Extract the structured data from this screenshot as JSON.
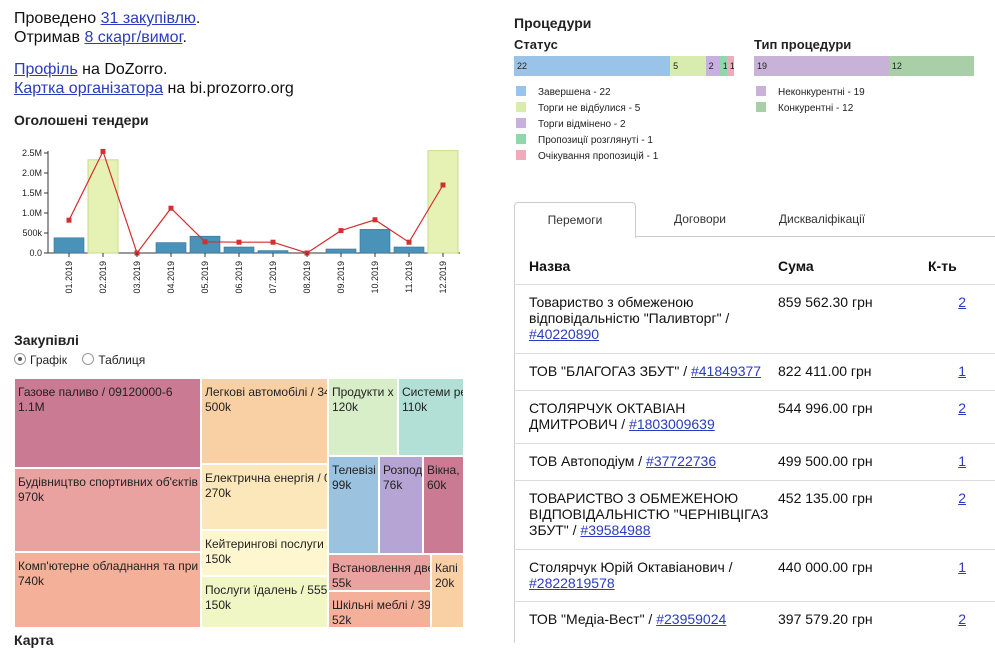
{
  "summary": {
    "line1_pre": "Проведено ",
    "line1_link": "31 закупівлю",
    "line1_post": ".",
    "line2_pre": "Отримав ",
    "line2_link": "8 скарг/вимог",
    "line2_post": ".",
    "profile_link": "Профіль",
    "profile_post": " на DoZorro.",
    "card_link": "Картка організатора",
    "card_post": " на bi.prozorro.org"
  },
  "tenders_title": "Оголошені тендери",
  "chart_data": {
    "type": "bar",
    "categories": [
      "01.2019",
      "02.2019",
      "03.2019",
      "04.2019",
      "05.2019",
      "06.2019",
      "07.2019",
      "08.2019",
      "09.2019",
      "10.2019",
      "11.2019",
      "12.2019"
    ],
    "yticks": [
      "0.0",
      "500k",
      "1.0M",
      "1.5M",
      "2.0M",
      "2.5M"
    ],
    "ylim": [
      0,
      2500000
    ],
    "series": [
      {
        "values": [
          380000,
          2330000,
          0,
          260000,
          420000,
          150000,
          60000,
          0,
          100000,
          590000,
          150000,
          2560000
        ]
      },
      {
        "values": [
          820000,
          2540000,
          0,
          1120000,
          280000,
          270000,
          270000,
          0,
          560000,
          830000,
          270000,
          1700000
        ]
      }
    ],
    "highlight": [
      false,
      true,
      false,
      false,
      false,
      false,
      false,
      false,
      false,
      false,
      false,
      true
    ],
    "colors": {
      "bar": "#4a92b8",
      "highlight": "#e6f2b3",
      "line": "#d32f2f"
    }
  },
  "purchases": {
    "title": "Закупівлі",
    "radio_graph": "Графік",
    "radio_table": "Таблиця",
    "treemap": [
      {
        "label": "Газове паливо / 09120000-6",
        "value": "1.1M",
        "color": "#cb7a94"
      },
      {
        "label": "Будівництво спортивних об'єктів",
        "value": "970k",
        "color": "#e9a2a0"
      },
      {
        "label": "Комп'ютерне обладнання та при",
        "value": "740k",
        "color": "#f5b09a"
      },
      {
        "label": "Легкові автомобілі / 34",
        "value": "500k",
        "color": "#f8d0a3"
      },
      {
        "label": "Електрична енергія / 0",
        "value": "270k",
        "color": "#fbe7ba"
      },
      {
        "label": "Кейтерингові послуги /",
        "value": "150k",
        "color": "#fdf6cf"
      },
      {
        "label": "Послуги їдалень / 555",
        "value": "150k",
        "color": "#f1f6c5"
      },
      {
        "label": "Продукти х",
        "value": "120k",
        "color": "#d8eec9"
      },
      {
        "label": "Системи ре",
        "value": "110k",
        "color": "#b3e0d6"
      },
      {
        "label": "Телевізі",
        "value": "99k",
        "color": "#9bc2de"
      },
      {
        "label": "Розпод",
        "value": "76k",
        "color": "#b6a5d4"
      },
      {
        "label": "Вікна,",
        "value": "60k",
        "color": "#cb7a94"
      },
      {
        "label": "Встановлення две",
        "value": "55k",
        "color": "#e9a2a0"
      },
      {
        "label": "Шкільні меблі / 39",
        "value": "52k",
        "color": "#f5b09a"
      },
      {
        "label": "Капі",
        "value": "20k",
        "color": "#f8d0a3"
      }
    ]
  },
  "map_title": "Карта",
  "procedures": {
    "title": "Процедури",
    "status_title": "Статус",
    "type_title": "Тип процедури",
    "status": [
      {
        "count": "22",
        "label": "Завершена - 22",
        "value": 22,
        "color": "#99c3e8"
      },
      {
        "count": "5",
        "label": "Торги не відбулися - 5",
        "value": 5,
        "color": "#d8ecaf"
      },
      {
        "count": "2",
        "label": "Торги відмінено - 2",
        "value": 2,
        "color": "#c7afe0"
      },
      {
        "count": "1",
        "label": "Пропозиції розглянуті - 1",
        "value": 1,
        "color": "#94d6ab"
      },
      {
        "count": "1",
        "label": "Очікування пропозицій - 1",
        "value": 1,
        "color": "#f1aab9"
      }
    ],
    "types": [
      {
        "count": "19",
        "label": "Неконкурентні - 19",
        "value": 19,
        "color": "#c9b2d8"
      },
      {
        "count": "12",
        "label": "Конкурентні - 12",
        "value": 12,
        "color": "#a9cfa8"
      }
    ]
  },
  "tabs": [
    "Перемоги",
    "Договори",
    "Дискваліфікації"
  ],
  "table": {
    "headers": [
      "Назва",
      "Сума",
      "К-ть"
    ],
    "rows": [
      {
        "name": "Товариство з обмеженою відповідальністю \"Паливторг\" / ",
        "id": "#40220890",
        "sum": "859 562.30 грн",
        "count": "2"
      },
      {
        "name": "ТОВ \"БЛАГОГАЗ ЗБУТ\" / ",
        "id": "#41849377",
        "sum": "822 411.00 грн",
        "count": "1"
      },
      {
        "name": "СТОЛЯРЧУК ОКТАВІАН ДМИТРОВИЧ / ",
        "id": "#1803009639",
        "sum": "544 996.00 грн",
        "count": "2"
      },
      {
        "name": "ТОВ Автоподіум / ",
        "id": "#37722736",
        "sum": "499 500.00 грн",
        "count": "1"
      },
      {
        "name": "ТОВАРИСТВО З ОБМЕЖЕНОЮ ВІДПОВІДАЛЬНІСТЮ \"ЧЕРНІВЦІГАЗ ЗБУТ\" / ",
        "id": "#39584988",
        "sum": "452 135.00 грн",
        "count": "2"
      },
      {
        "name": "Столярчук Юрій Октавіанович / ",
        "id": "#2822819578",
        "sum": "440 000.00 грн",
        "count": "1"
      },
      {
        "name": "ТОВ \"Медіа-Вест\" / ",
        "id": "#23959024",
        "sum": "397 579.20 грн",
        "count": "2"
      }
    ]
  }
}
